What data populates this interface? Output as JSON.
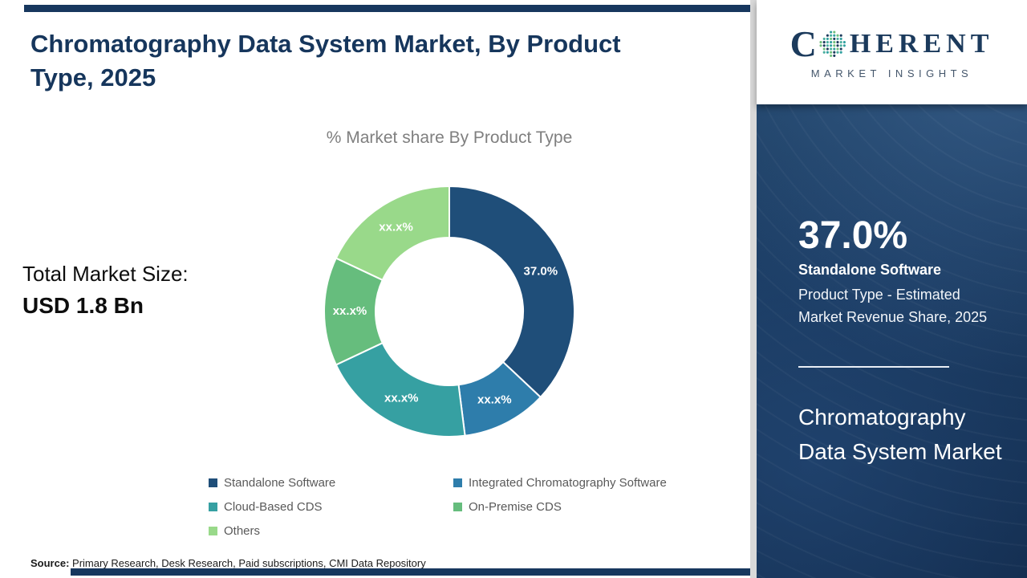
{
  "page": {
    "title": "Chromatography Data System Market, By Product Type, 2025",
    "total_label": "Total Market Size:",
    "total_value": "USD 1.8 Bn",
    "source_label": "Source:",
    "source_text": " Primary Research, Desk Research, Paid subscriptions, CMI Data Repository"
  },
  "chart_data": {
    "type": "pie",
    "donut": true,
    "title": "% Market share By Product Type",
    "categories": [
      "Standalone Software",
      "Integrated Chromatography Software",
      "Cloud-Based CDS",
      "On-Premise CDS",
      "Others"
    ],
    "values": [
      37,
      11,
      20,
      14,
      18
    ],
    "slice_labels": [
      "37.0%",
      "xx.x%",
      "xx.x%",
      "xx.x%",
      "xx.x%"
    ],
    "colors": [
      "#1f4e79",
      "#2e7dab",
      "#36a0a2",
      "#66bd7d",
      "#99d98a"
    ],
    "legend_position": "bottom",
    "start_angle_deg": -90,
    "direction": "clockwise"
  },
  "sidebar": {
    "stat_value": "37.0%",
    "stat_name": "Standalone Software",
    "stat_desc": "Product Type - Estimated Market Revenue Share, 2025",
    "market_name": "Chromatography Data System Market",
    "accent_color": "#16365c"
  },
  "logo": {
    "word_start": "C",
    "word_rest": "HERENT",
    "subtitle": "MARKET INSIGHTS"
  }
}
